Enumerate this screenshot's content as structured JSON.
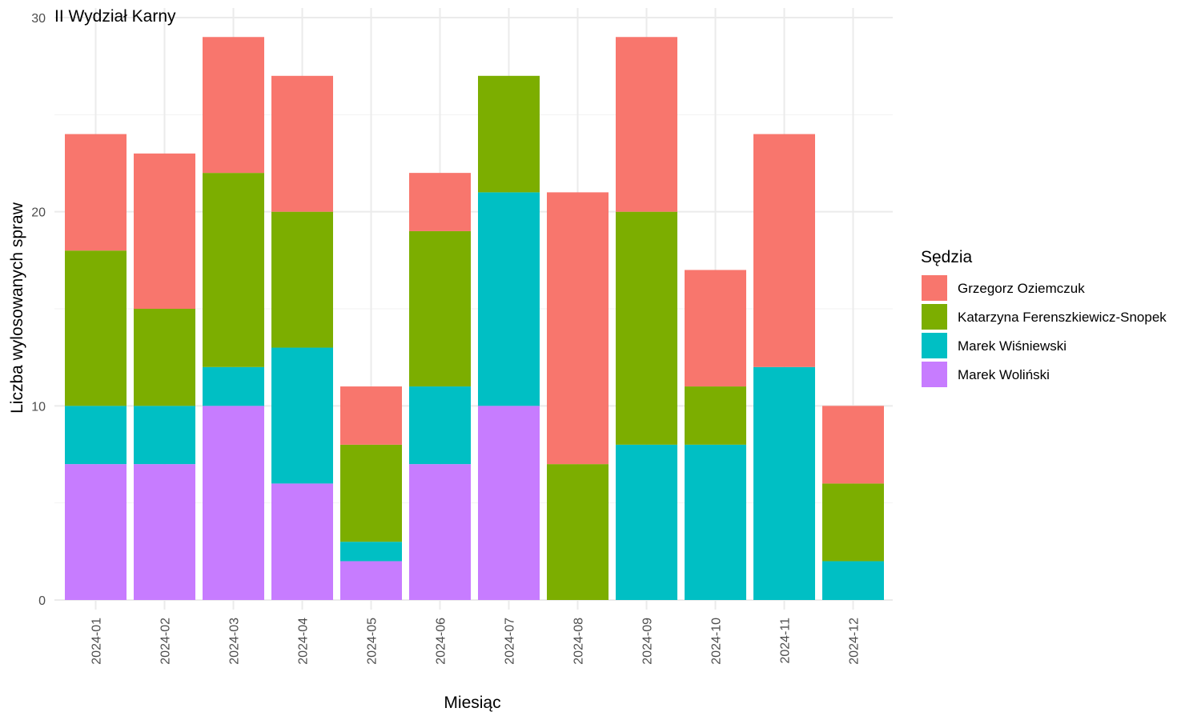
{
  "chart_data": {
    "type": "bar",
    "stacked": true,
    "title": "II Wydział Karny",
    "xlabel": "Miesiąc",
    "ylabel": "Liczba wylosowanych spraw",
    "ylim": [
      0,
      30
    ],
    "yticks": [
      "0",
      "10",
      "20",
      "30"
    ],
    "grid": true,
    "legend_title": "Sędzia",
    "legend_position": "right",
    "categories": [
      "2024-01",
      "2024-02",
      "2024-03",
      "2024-04",
      "2024-05",
      "2024-06",
      "2024-07",
      "2024-08",
      "2024-09",
      "2024-10",
      "2024-11",
      "2024-12"
    ],
    "series": [
      {
        "name": "Grzegorz Oziemczuk",
        "color": "#F8766D",
        "values": [
          6,
          8,
          7,
          7,
          3,
          3,
          0,
          14,
          9,
          6,
          12,
          4
        ]
      },
      {
        "name": "Katarzyna Ferenszkiewicz-Snopek",
        "color": "#7CAE00",
        "values": [
          8,
          5,
          10,
          7,
          5,
          8,
          6,
          7,
          12,
          3,
          0,
          4
        ]
      },
      {
        "name": "Marek Wiśniewski",
        "color": "#00BFC4",
        "values": [
          3,
          3,
          2,
          7,
          1,
          4,
          11,
          0,
          8,
          8,
          12,
          2
        ]
      },
      {
        "name": "Marek Woliński",
        "color": "#C77CFF",
        "values": [
          7,
          7,
          10,
          6,
          2,
          7,
          10,
          0,
          0,
          0,
          0,
          0
        ]
      }
    ]
  }
}
